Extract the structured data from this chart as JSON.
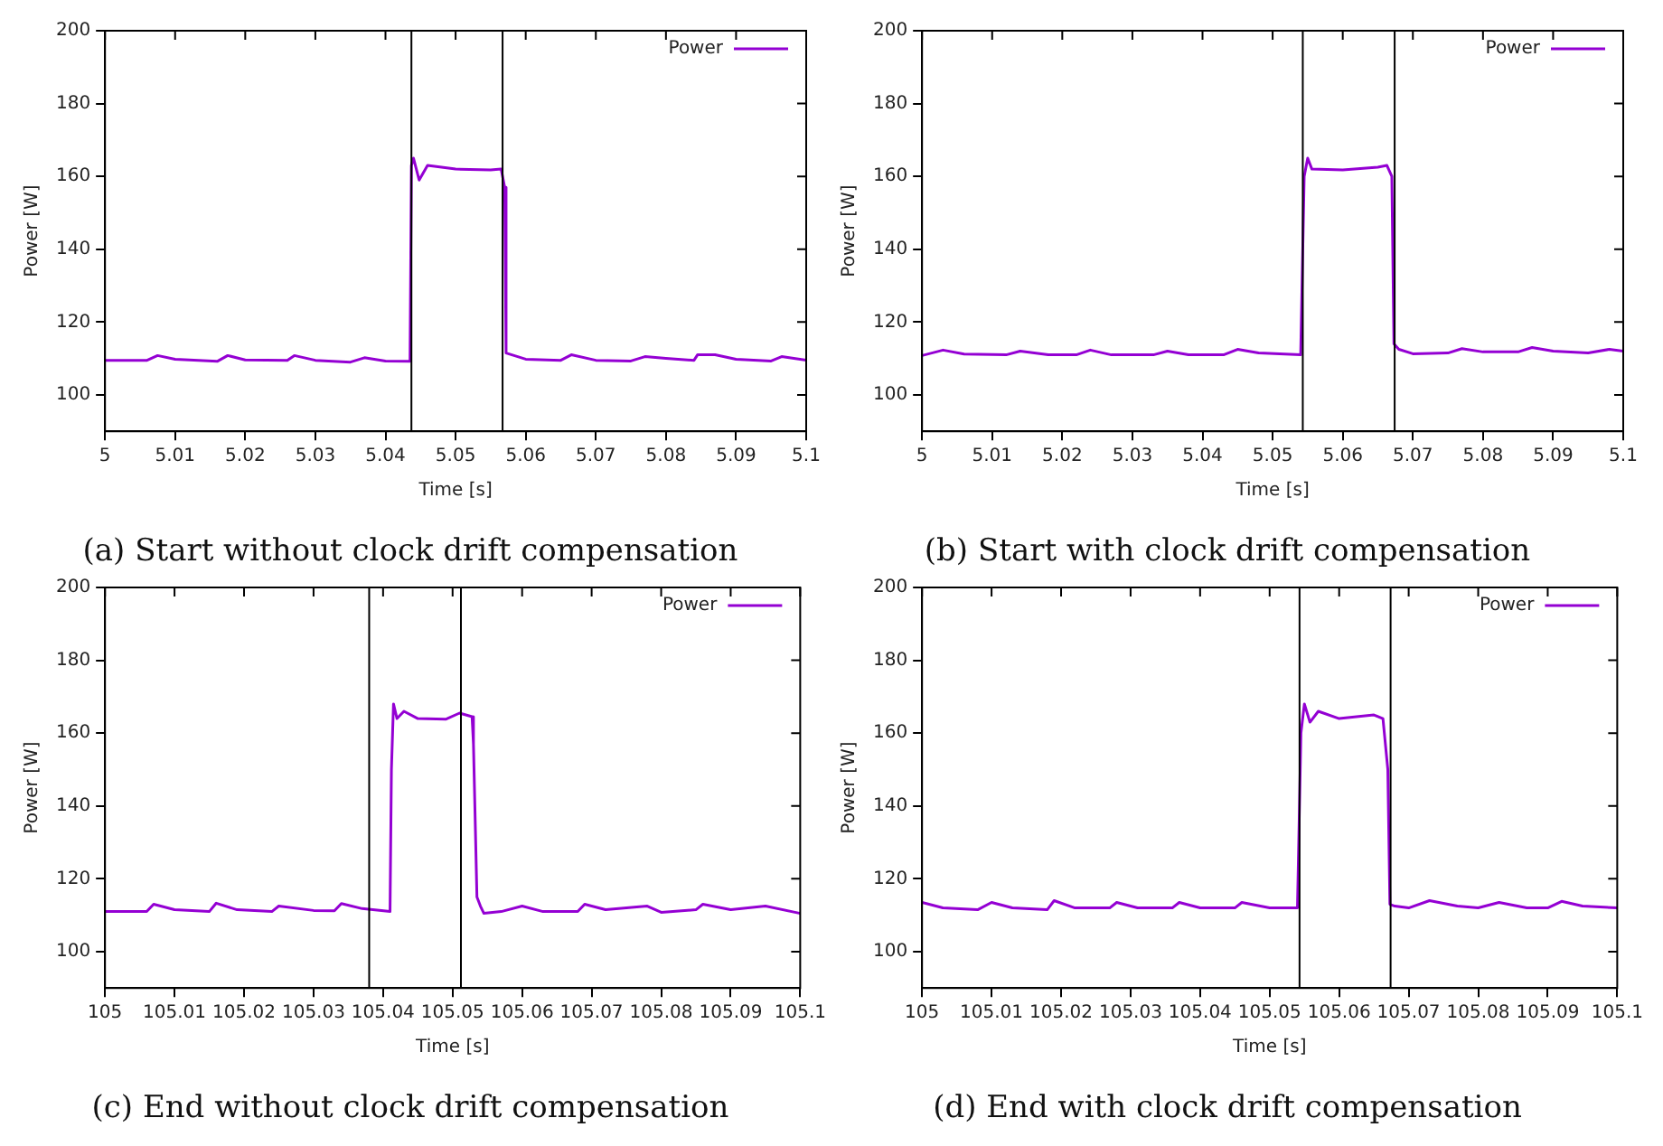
{
  "chart_data": [
    {
      "type": "line",
      "title": "(a) Start without clock drift compensation",
      "xlabel": "Time [s]",
      "ylabel": "Power [W]",
      "xlim": [
        5,
        5.1
      ],
      "xticks": [
        5,
        5.01,
        5.02,
        5.03,
        5.04,
        5.05,
        5.06,
        5.07,
        5.08,
        5.09,
        5.1
      ],
      "ylim": [
        90,
        200
      ],
      "yticks": [
        100,
        120,
        140,
        160,
        180,
        200
      ],
      "grid": false,
      "legend": "top right",
      "marker": "none",
      "line_style": "solid",
      "ref_lines": [
        {
          "axis": "x",
          "value": 5.0437,
          "color": "#000000"
        },
        {
          "axis": "x",
          "value": 5.0567,
          "color": "#000000"
        }
      ],
      "series": [
        {
          "name": "Power",
          "color": "#9400d3",
          "x": [
            5,
            5.006,
            5.0075,
            5.01,
            5.016,
            5.0175,
            5.02,
            5.026,
            5.027,
            5.03,
            5.035,
            5.037,
            5.04,
            5.0435,
            5.0437,
            5.044,
            5.0448,
            5.046,
            5.05,
            5.055,
            5.0565,
            5.057,
            5.0572,
            5.06,
            5.065,
            5.0665,
            5.07,
            5.075,
            5.077,
            5.08,
            5.084,
            5.0845,
            5.087,
            5.09,
            5.095,
            5.0965,
            5.1
          ],
          "values": [
            109.5,
            109.5,
            110.8,
            109.8,
            109.2,
            110.8,
            109.6,
            109.5,
            110.8,
            109.5,
            109,
            110.2,
            109.3,
            109.2,
            163,
            165,
            159,
            163,
            162,
            161.8,
            162,
            157,
            111.5,
            109.8,
            109.5,
            111,
            109.5,
            109.3,
            110.5,
            110,
            109.5,
            111,
            111,
            109.8,
            109.3,
            110.5,
            109.5
          ]
        }
      ]
    },
    {
      "type": "line",
      "title": "(b) Start with clock drift compensation",
      "xlabel": "Time [s]",
      "ylabel": "Power [W]",
      "xlim": [
        5,
        5.1
      ],
      "xticks": [
        5,
        5.01,
        5.02,
        5.03,
        5.04,
        5.05,
        5.06,
        5.07,
        5.08,
        5.09,
        5.1
      ],
      "ylim": [
        90,
        200
      ],
      "yticks": [
        100,
        120,
        140,
        160,
        180,
        200
      ],
      "grid": false,
      "legend": "top right",
      "marker": "none",
      "line_style": "solid",
      "ref_lines": [
        {
          "axis": "x",
          "value": 5.0543,
          "color": "#000000"
        },
        {
          "axis": "x",
          "value": 5.0674,
          "color": "#000000"
        }
      ],
      "series": [
        {
          "name": "Power",
          "color": "#9400d3",
          "x": [
            5,
            5.003,
            5.006,
            5.012,
            5.014,
            5.018,
            5.022,
            5.024,
            5.027,
            5.033,
            5.035,
            5.038,
            5.043,
            5.045,
            5.048,
            5.054,
            5.0545,
            5.055,
            5.0556,
            5.06,
            5.065,
            5.0663,
            5.067,
            5.0673,
            5.068,
            5.07,
            5.075,
            5.077,
            5.08,
            5.085,
            5.087,
            5.09,
            5.095,
            5.098,
            5.1
          ],
          "values": [
            110.8,
            112.3,
            111.2,
            111,
            112,
            111,
            111,
            112.3,
            111,
            111,
            112,
            111,
            111,
            112.5,
            111.5,
            111,
            160,
            165,
            162,
            161.8,
            162.5,
            163,
            160,
            114,
            112.5,
            111.3,
            111.5,
            112.7,
            111.8,
            111.8,
            113,
            112,
            111.5,
            112.5,
            112
          ]
        }
      ]
    },
    {
      "type": "line",
      "title": "(c) End without clock drift compensation",
      "xlabel": "Time [s]",
      "ylabel": "Power [W]",
      "xlim": [
        105,
        105.1
      ],
      "xticks": [
        105,
        105.01,
        105.02,
        105.03,
        105.04,
        105.05,
        105.06,
        105.07,
        105.08,
        105.09,
        105.1
      ],
      "ylim": [
        90,
        200
      ],
      "yticks": [
        100,
        120,
        140,
        160,
        180,
        200
      ],
      "grid": false,
      "legend": "top right",
      "marker": "none",
      "line_style": "solid",
      "ref_lines": [
        {
          "axis": "x",
          "value": 105.038,
          "color": "#000000"
        },
        {
          "axis": "x",
          "value": 105.0512,
          "color": "#000000"
        }
      ],
      "series": [
        {
          "name": "Power",
          "color": "#9400d3",
          "x": [
            105,
            105.006,
            105.007,
            105.01,
            105.015,
            105.016,
            105.019,
            105.024,
            105.025,
            105.03,
            105.033,
            105.034,
            105.037,
            105.041,
            105.0412,
            105.0415,
            105.042,
            105.043,
            105.045,
            105.049,
            105.051,
            105.0528,
            105.053,
            105.0535,
            105.054,
            105.0545,
            105.057,
            105.06,
            105.063,
            105.068,
            105.069,
            105.072,
            105.078,
            105.08,
            105.085,
            105.086,
            105.09,
            105.095,
            105.1
          ],
          "values": [
            111,
            111,
            113,
            111.5,
            111,
            113.3,
            111.5,
            111,
            112.5,
            111.3,
            111.2,
            113.2,
            111.8,
            111,
            150,
            168,
            164,
            166,
            164,
            163.8,
            165.5,
            164.5,
            157,
            115,
            112.5,
            110.5,
            111,
            112.5,
            111,
            111,
            113,
            111.5,
            112.5,
            110.8,
            111.5,
            113,
            111.5,
            112.5,
            110.5
          ]
        }
      ]
    },
    {
      "type": "line",
      "title": "(d) End with clock drift compensation",
      "xlabel": "Time [s]",
      "ylabel": "Power [W]",
      "xlim": [
        105,
        105.1
      ],
      "xticks": [
        105,
        105.01,
        105.02,
        105.03,
        105.04,
        105.05,
        105.06,
        105.07,
        105.08,
        105.09,
        105.1
      ],
      "ylim": [
        90,
        200
      ],
      "yticks": [
        100,
        120,
        140,
        160,
        180,
        200
      ],
      "grid": false,
      "legend": "top right",
      "marker": "none",
      "line_style": "solid",
      "ref_lines": [
        {
          "axis": "x",
          "value": 105.0543,
          "color": "#000000"
        },
        {
          "axis": "x",
          "value": 105.0674,
          "color": "#000000"
        }
      ],
      "series": [
        {
          "name": "Power",
          "color": "#9400d3",
          "x": [
            105,
            105.003,
            105.008,
            105.01,
            105.013,
            105.018,
            105.019,
            105.022,
            105.027,
            105.028,
            105.031,
            105.036,
            105.037,
            105.04,
            105.045,
            105.046,
            105.05,
            105.054,
            105.0545,
            105.055,
            105.0558,
            105.057,
            105.06,
            105.065,
            105.0663,
            105.067,
            105.0673,
            105.068,
            105.07,
            105.073,
            105.077,
            105.08,
            105.083,
            105.087,
            105.09,
            105.092,
            105.095,
            105.1
          ],
          "values": [
            113.5,
            112,
            111.5,
            113.5,
            112,
            111.5,
            114,
            112,
            112,
            113.5,
            112,
            112,
            113.5,
            112,
            112,
            113.5,
            112,
            112,
            160,
            168,
            163,
            166,
            164,
            165,
            164,
            150,
            113,
            112.5,
            112,
            114,
            112.5,
            112,
            113.5,
            112,
            112,
            113.8,
            112.5,
            112
          ]
        }
      ]
    }
  ]
}
